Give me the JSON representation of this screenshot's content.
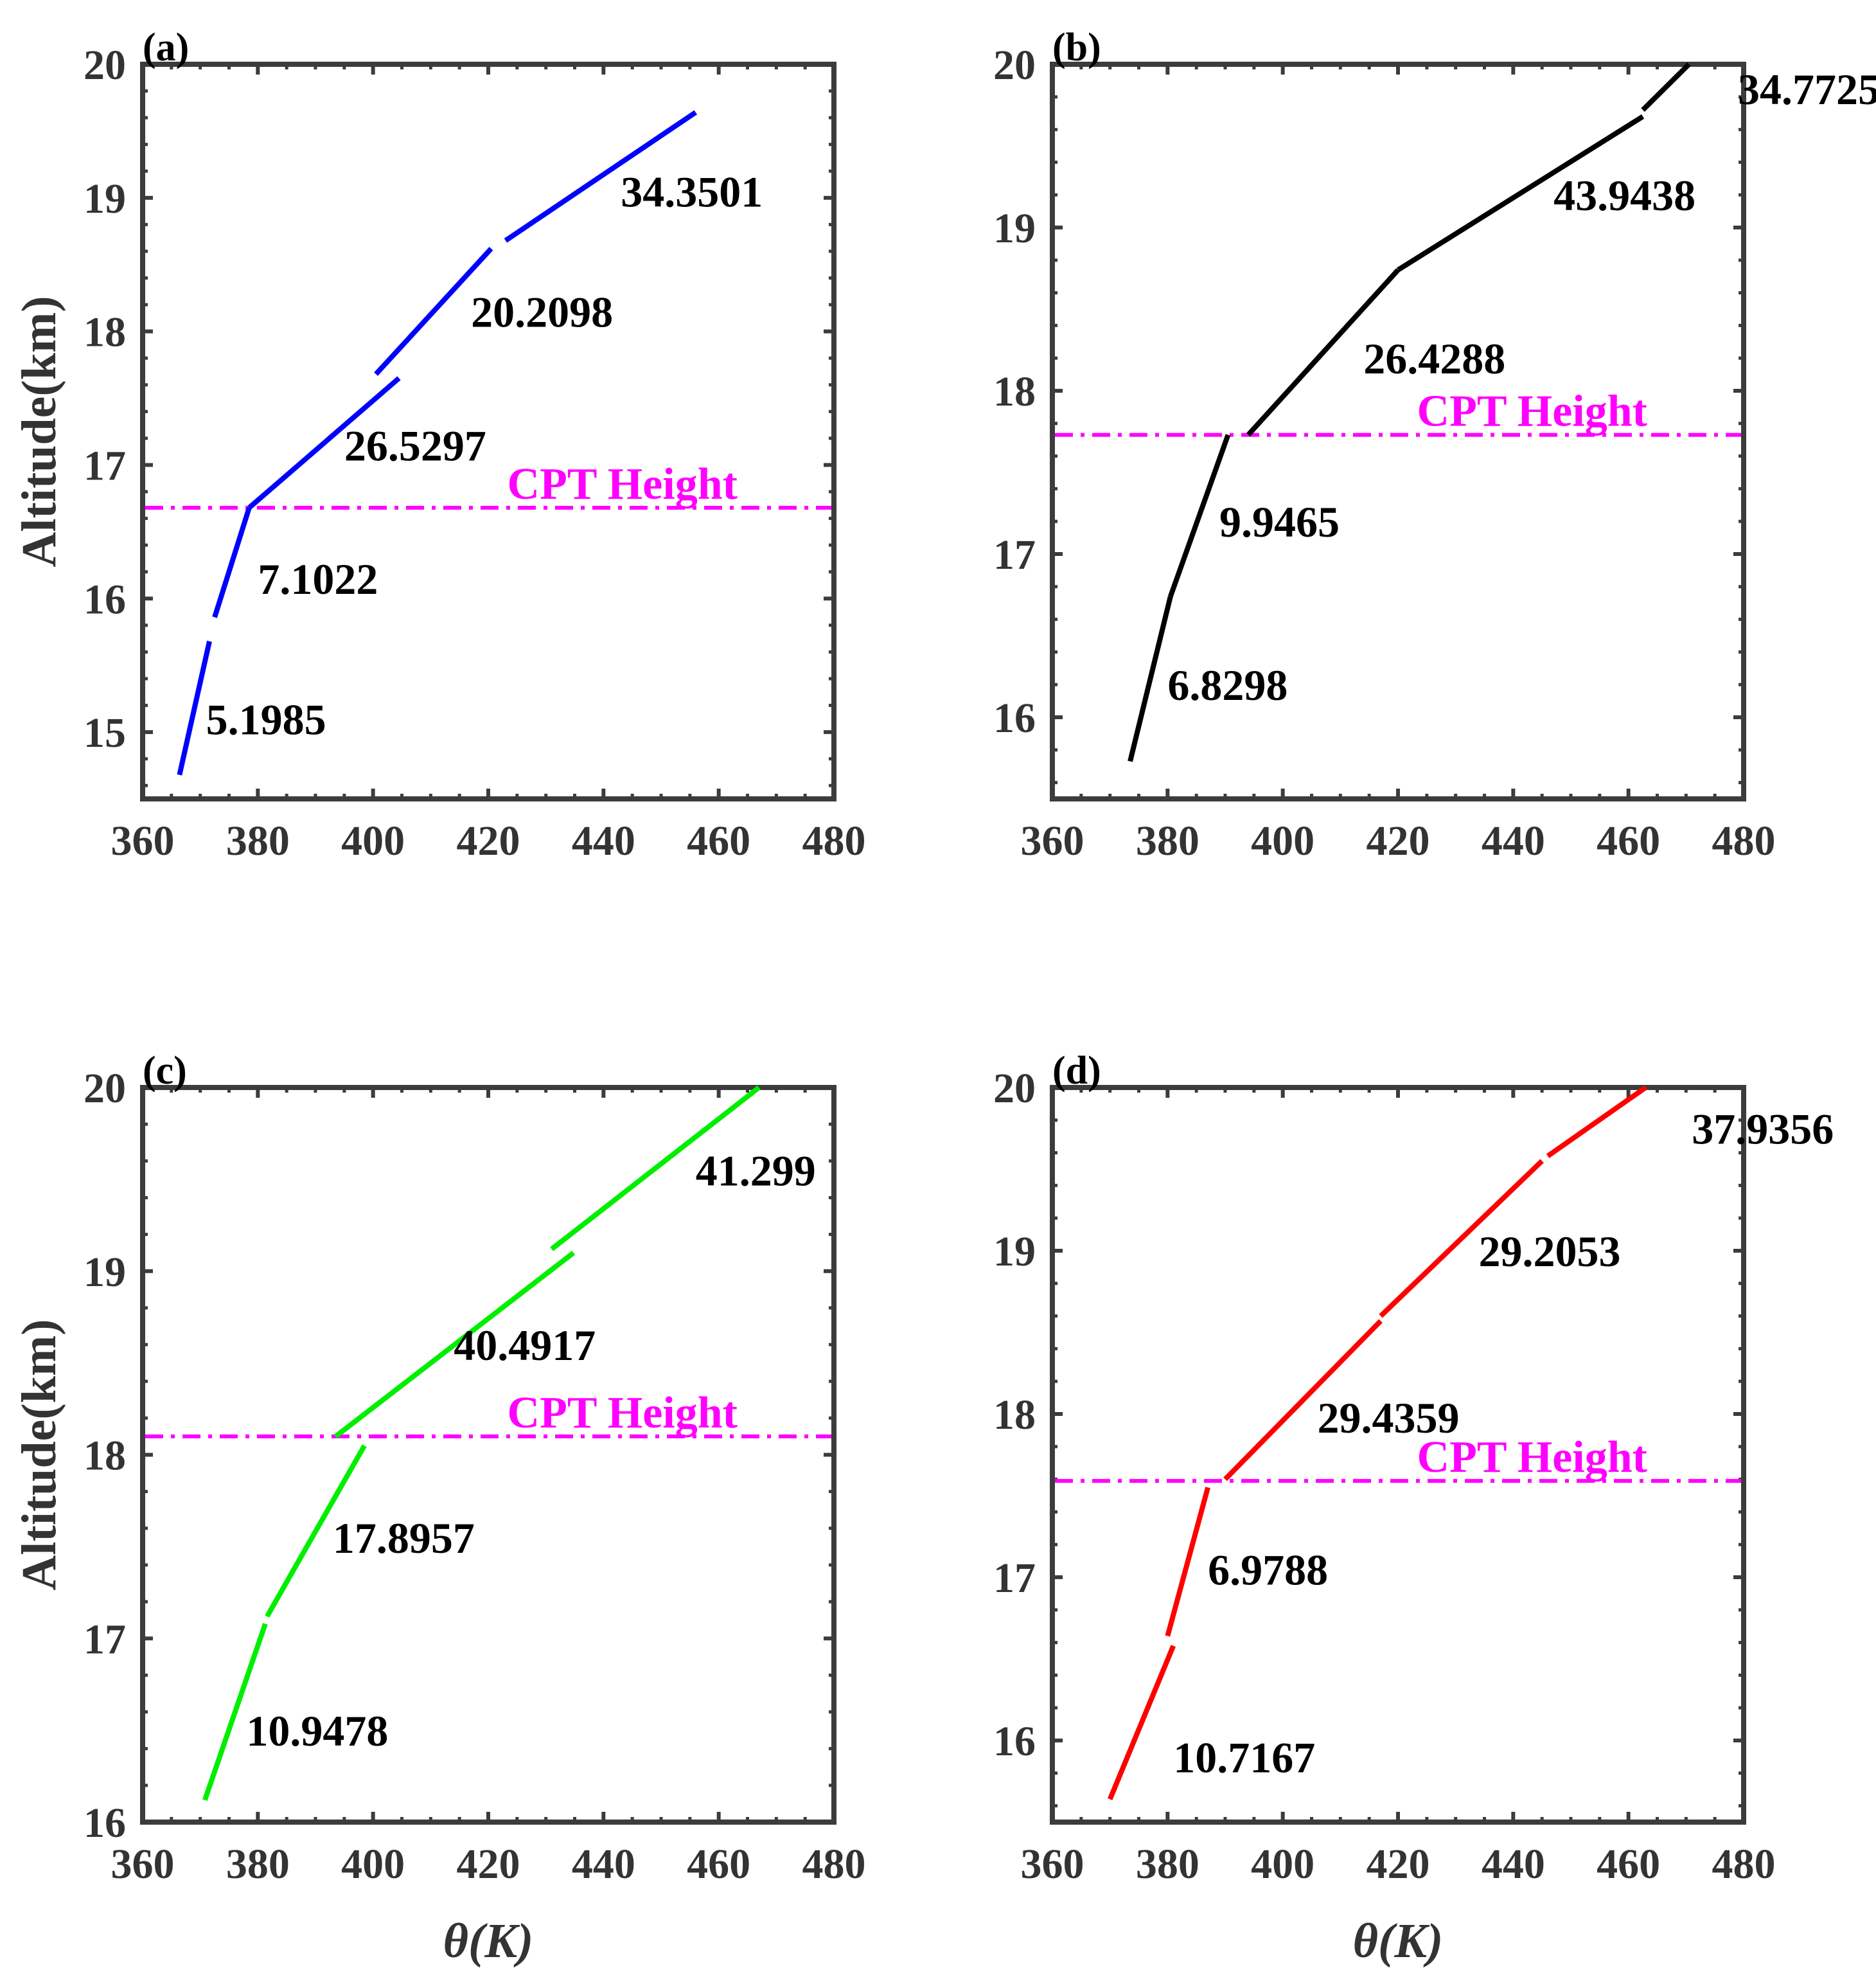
{
  "chart_data": [
    {
      "type": "line",
      "panel_label": "(a)",
      "color": "#0000FF",
      "xlabel": "",
      "ylabel": "Altitude(km)",
      "xlim": [
        360,
        480
      ],
      "ylim": [
        14.5,
        20
      ],
      "xticks": [
        "360",
        "380",
        "400",
        "420",
        "440",
        "460",
        "480"
      ],
      "yticks": [
        "15",
        "16",
        "17",
        "18",
        "19",
        "20"
      ],
      "cpt": {
        "label": "CPT Height",
        "altitude": 16.68
      },
      "segments": [
        {
          "label": "5.1985",
          "points": [
            [
              366.4,
              14.68
            ],
            [
              371.6,
              15.68
            ]
          ],
          "label_at": [
            371,
            15.1
          ]
        },
        {
          "label": "7.1022",
          "points": [
            [
              372.5,
              15.86
            ],
            [
              378.5,
              16.68
            ]
          ],
          "label_at": [
            380,
            16.15
          ]
        },
        {
          "label": "26.5297",
          "points": [
            [
              378.5,
              16.68
            ],
            [
              404.5,
              17.65
            ]
          ],
          "label_at": [
            395,
            17.15
          ]
        },
        {
          "label": "20.2098",
          "points": [
            [
              400.5,
              17.68
            ],
            [
              420.5,
              18.62
            ]
          ],
          "label_at": [
            417,
            18.15
          ]
        },
        {
          "label": "34.3501",
          "points": [
            [
              423.0,
              18.68
            ],
            [
              456.0,
              19.64
            ]
          ],
          "label_at": [
            443,
            19.05
          ]
        }
      ]
    },
    {
      "type": "line",
      "panel_label": "(b)",
      "color": "#000000",
      "xlabel": "",
      "ylabel": "",
      "xlim": [
        360,
        480
      ],
      "ylim": [
        15.5,
        20
      ],
      "xticks": [
        "360",
        "380",
        "400",
        "420",
        "440",
        "460",
        "480"
      ],
      "yticks": [
        "16",
        "17",
        "18",
        "19",
        "20"
      ],
      "cpt": {
        "label": "CPT Height",
        "altitude": 17.73
      },
      "segments": [
        {
          "label": "6.8298",
          "points": [
            [
              373.5,
              15.73
            ],
            [
              380.5,
              16.74
            ]
          ],
          "label_at": [
            380,
            16.2
          ]
        },
        {
          "label": "9.9465",
          "points": [
            [
              380.5,
              16.74
            ],
            [
              390.5,
              17.73
            ]
          ],
          "label_at": [
            389,
            17.2
          ]
        },
        {
          "label": "26.4288",
          "points": [
            [
              394.0,
              17.73
            ],
            [
              420.0,
              18.74
            ]
          ],
          "label_at": [
            414,
            18.2
          ]
        },
        {
          "label": "43.9438",
          "points": [
            [
              420.0,
              18.74
            ],
            [
              462.5,
              19.68
            ]
          ],
          "label_at": [
            447,
            19.2
          ]
        },
        {
          "label": "34.7725",
          "points": [
            [
              462.5,
              19.72
            ],
            [
              470.5,
              20.0
            ]
          ],
          "label_at": [
            479,
            19.85
          ]
        }
      ]
    },
    {
      "type": "line",
      "panel_label": "(c)",
      "color": "#00EE00",
      "xlabel": "θ(K)",
      "ylabel": "Altitude(km)",
      "xlim": [
        360,
        480
      ],
      "ylim": [
        16,
        20
      ],
      "xticks": [
        "360",
        "380",
        "400",
        "420",
        "440",
        "460",
        "480"
      ],
      "yticks": [
        "16",
        "17",
        "18",
        "19",
        "20"
      ],
      "cpt": {
        "label": "CPT Height",
        "altitude": 18.1
      },
      "segments": [
        {
          "label": "10.9478",
          "points": [
            [
              370.8,
              16.12
            ],
            [
              381.3,
              17.08
            ]
          ],
          "label_at": [
            378,
            16.5
          ]
        },
        {
          "label": "17.8957",
          "points": [
            [
              381.6,
              17.12
            ],
            [
              398.5,
              18.05
            ]
          ],
          "label_at": [
            393,
            17.55
          ]
        },
        {
          "label": "40.4917",
          "points": [
            [
              393.5,
              18.1
            ],
            [
              434.8,
              19.1
            ]
          ],
          "label_at": [
            414,
            18.6
          ]
        },
        {
          "label": "41.299",
          "points": [
            [
              431.0,
              19.12
            ],
            [
              467.0,
              20.0
            ]
          ],
          "label_at": [
            456,
            19.55
          ]
        }
      ]
    },
    {
      "type": "line",
      "panel_label": "(d)",
      "color": "#FF0000",
      "xlabel": "θ(K)",
      "ylabel": "",
      "xlim": [
        360,
        480
      ],
      "ylim": [
        15.5,
        20
      ],
      "xticks": [
        "360",
        "380",
        "400",
        "420",
        "440",
        "460",
        "480"
      ],
      "yticks": [
        "16",
        "17",
        "18",
        "19",
        "20"
      ],
      "cpt": {
        "label": "CPT Height",
        "altitude": 17.59
      },
      "segments": [
        {
          "label": "10.7167",
          "points": [
            [
              370.0,
              15.64
            ],
            [
              381.0,
              16.58
            ]
          ],
          "label_at": [
            381,
            15.9
          ]
        },
        {
          "label": "6.9788",
          "points": [
            [
              380.0,
              16.64
            ],
            [
              387.0,
              17.55
            ]
          ],
          "label_at": [
            387,
            17.05
          ]
        },
        {
          "label": "29.4359",
          "points": [
            [
              390.0,
              17.6
            ],
            [
              417.0,
              18.57
            ]
          ],
          "label_at": [
            406,
            17.98
          ]
        },
        {
          "label": "29.2053",
          "points": [
            [
              417.0,
              18.6
            ],
            [
              445.0,
              19.55
            ]
          ],
          "label_at": [
            434,
            19.0
          ]
        },
        {
          "label": "37.9356",
          "points": [
            [
              446.0,
              19.58
            ],
            [
              463.0,
              20.0
            ]
          ],
          "label_at": [
            471,
            19.75
          ]
        }
      ]
    }
  ]
}
